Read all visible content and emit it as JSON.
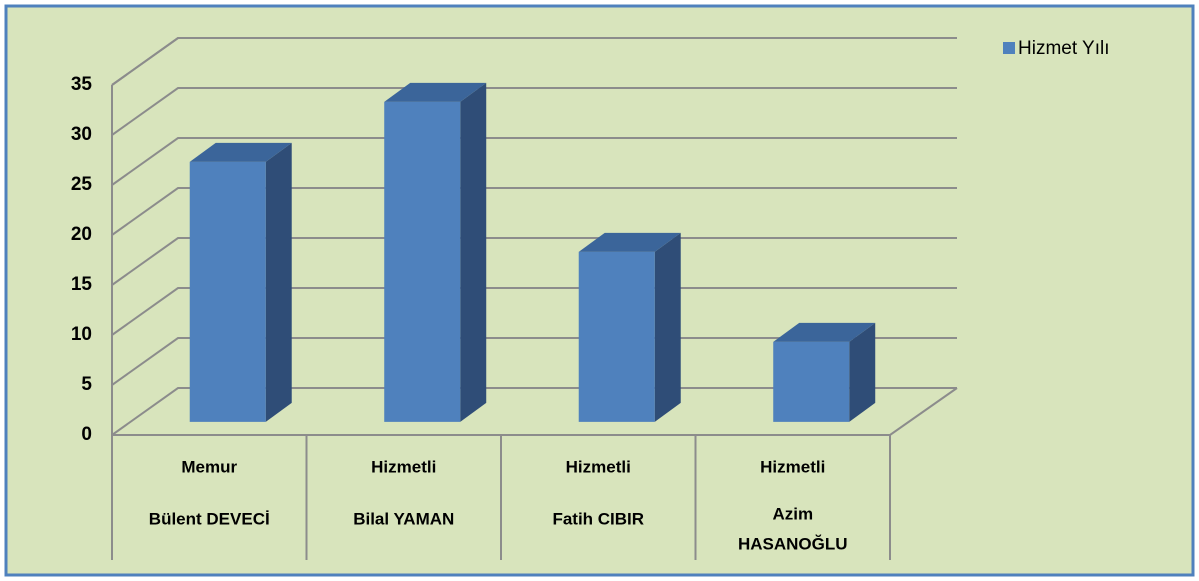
{
  "chart_data": {
    "type": "bar3d",
    "categories": [
      [
        "Memur",
        "Bülent DEVECİ"
      ],
      [
        "Hizmetli",
        "Bilal YAMAN"
      ],
      [
        "Hizmetli",
        "Fatih CIBIR"
      ],
      [
        "Hizmetli",
        "Azim",
        "HASANOĞLU"
      ]
    ],
    "series": [
      {
        "name": "Hizmet Yılı",
        "color": "#4f81bd",
        "values": [
          26,
          32,
          17,
          8
        ]
      }
    ],
    "ylim": [
      0,
      35
    ],
    "yticks": [
      0,
      5,
      10,
      15,
      20,
      25,
      30,
      35
    ],
    "grid": true,
    "legend": "top-right"
  }
}
